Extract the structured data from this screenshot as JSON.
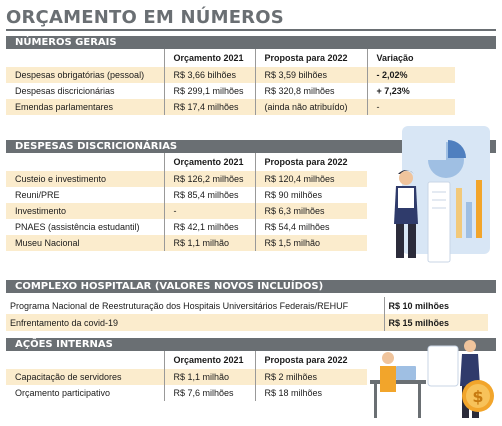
{
  "title": "ORÇAMENTO EM NÚMEROS",
  "sections": {
    "gerais": {
      "heading": "NÚMEROS GERAIS",
      "columns": [
        "",
        "Orçamento 2021",
        "Proposta para 2022",
        "Variação"
      ],
      "rows": [
        [
          "Despesas obrigatórias (pessoal)",
          "R$ 3,66 bilhões",
          "R$ 3,59 bilhões",
          "- 2,02%"
        ],
        [
          "Despesas discricionárias",
          "R$ 299,1 milhões",
          "R$ 320,8 milhões",
          "+ 7,23%"
        ],
        [
          "Emendas parlamentares",
          "R$ 17,4 milhões",
          "(ainda não atribuído)",
          "-"
        ]
      ]
    },
    "discricionarias": {
      "heading": "DESPESAS DISCRICIONÁRIAS",
      "columns": [
        "",
        "Orçamento 2021",
        "Proposta para 2022"
      ],
      "rows": [
        [
          "Custeio e investimento",
          "R$ 126,2 milhões",
          "R$ 120,4 milhões"
        ],
        [
          "Reuni/PRE",
          "R$ 85,4 milhões",
          "R$ 90 milhões"
        ],
        [
          "Investimento",
          "-",
          "R$ 6,3 milhões"
        ],
        [
          "PNAES (assistência estudantil)",
          "R$ 42,1 milhões",
          "R$ 54,4 milhões"
        ],
        [
          "Museu Nacional",
          "R$ 1,1 milhão",
          "R$ 1,5 milhão"
        ]
      ]
    },
    "hospitalar": {
      "heading": "COMPLEXO HOSPITALAR (VALORES NOVOS INCLUÍDOS)",
      "rows": [
        [
          "Programa Nacional de Reestruturação dos Hospitais Universitários Federais/REHUF",
          "R$ 10 milhões"
        ],
        [
          "Enfrentamento da covid-19",
          "R$ 15 milhões"
        ]
      ]
    },
    "internas": {
      "heading": "AÇÕES INTERNAS",
      "columns": [
        "",
        "Orçamento 2021",
        "Proposta para 2022"
      ],
      "rows": [
        [
          "Capacitação de servidores",
          "R$ 1,1 milhão",
          "R$ 2 milhões"
        ],
        [
          "Orçamento participativo",
          "R$ 7,6 milhões",
          "R$ 18 milhões"
        ]
      ]
    }
  },
  "colors": {
    "header": "#6a6f73",
    "cream": "#fbeccd",
    "accent": "#f2a52b"
  },
  "icons": [
    "finance-chart-illustration",
    "coin-dollar-illustration"
  ]
}
